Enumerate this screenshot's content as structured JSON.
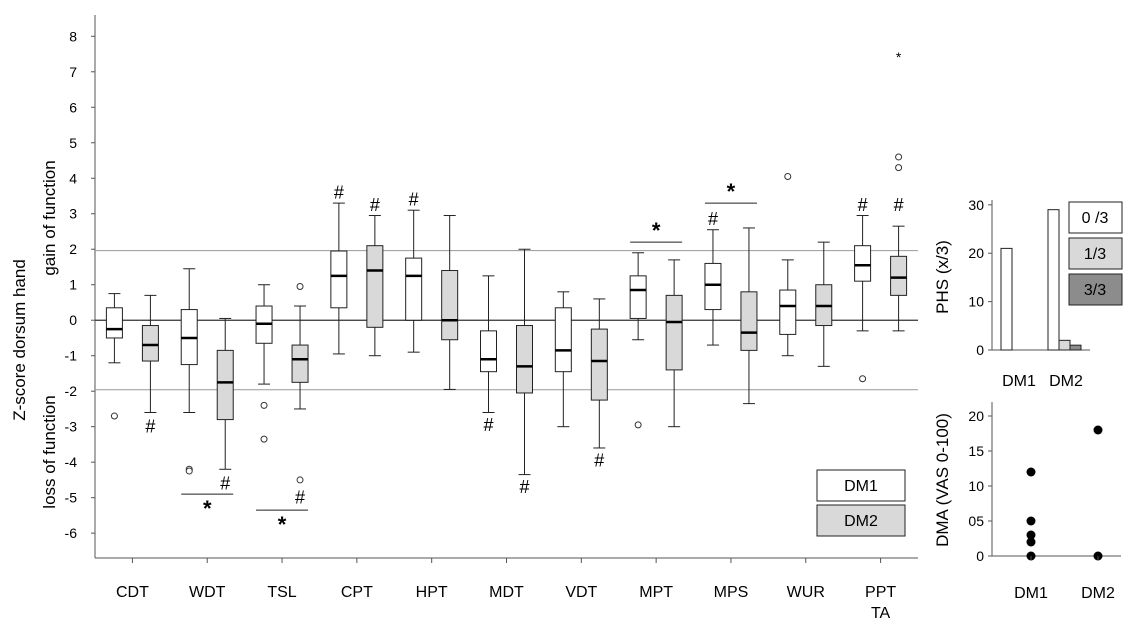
{
  "chart_data": [
    {
      "type": "box",
      "ylabel_top": "Z-score dorsum hand",
      "ylabel_mid": "gain of function",
      "ylabel_bottom": "loss of function",
      "yticks": [
        "8",
        "7",
        "6",
        "5",
        "4",
        "3",
        "2",
        "1",
        "0",
        "-1",
        "-2",
        "-3",
        "-4",
        "-5",
        "-6"
      ],
      "ylim": [
        -6.7,
        8.6
      ],
      "reference_lines": [
        0,
        1.96,
        -1.96
      ],
      "categories": [
        {
          "label": "CDT",
          "label2": ""
        },
        {
          "label": "WDT",
          "label2": ""
        },
        {
          "label": "TSL",
          "label2": ""
        },
        {
          "label": "CPT",
          "label2": ""
        },
        {
          "label": "HPT",
          "label2": ""
        },
        {
          "label": "MDT",
          "label2": ""
        },
        {
          "label": "VDT",
          "label2": ""
        },
        {
          "label": "MPT",
          "label2": ""
        },
        {
          "label": "MPS",
          "label2": ""
        },
        {
          "label": "WUR",
          "label2": ""
        },
        {
          "label": "PPT",
          "label2": "TA"
        }
      ],
      "legend": [
        {
          "name": "DM1",
          "color": "#ffffff"
        },
        {
          "name": "DM2",
          "color": "#d9d9d9"
        }
      ],
      "series": [
        {
          "name": "DM1",
          "color": "#ffffff",
          "boxes": [
            {
              "min": -1.2,
              "q1": -0.5,
              "median": -0.25,
              "q3": 0.35,
              "max": 0.75,
              "outliers": [
                -2.7
              ],
              "extremes": []
            },
            {
              "min": -2.6,
              "q1": -1.25,
              "median": -0.5,
              "q3": 0.3,
              "max": 1.45,
              "outliers": [
                -4.2,
                -4.25
              ],
              "extremes": []
            },
            {
              "min": -1.8,
              "q1": -0.65,
              "median": -0.1,
              "q3": 0.4,
              "max": 1.0,
              "outliers": [
                -2.4,
                -3.35
              ],
              "extremes": []
            },
            {
              "min": -0.95,
              "q1": 0.35,
              "median": 1.25,
              "q3": 1.95,
              "max": 3.3,
              "outliers": [],
              "extremes": []
            },
            {
              "min": -0.9,
              "q1": 0.0,
              "median": 1.25,
              "q3": 1.75,
              "max": 3.1,
              "outliers": [],
              "extremes": []
            },
            {
              "min": -2.6,
              "q1": -1.45,
              "median": -1.1,
              "q3": -0.3,
              "max": 1.25,
              "outliers": [],
              "extremes": []
            },
            {
              "min": -3.0,
              "q1": -1.45,
              "median": -0.85,
              "q3": 0.35,
              "max": 0.8,
              "outliers": [],
              "extremes": []
            },
            {
              "min": -0.55,
              "q1": 0.05,
              "median": 0.85,
              "q3": 1.25,
              "max": 1.9,
              "outliers": [
                -2.95
              ],
              "extremes": []
            },
            {
              "min": -0.7,
              "q1": 0.3,
              "median": 1.0,
              "q3": 1.6,
              "max": 2.55,
              "outliers": [],
              "extremes": []
            },
            {
              "min": -1.0,
              "q1": -0.4,
              "median": 0.4,
              "q3": 0.85,
              "max": 1.7,
              "outliers": [
                4.05
              ],
              "extremes": []
            },
            {
              "min": -0.3,
              "q1": 1.1,
              "median": 1.55,
              "q3": 2.1,
              "max": 2.95,
              "outliers": [
                -1.65
              ],
              "extremes": []
            }
          ]
        },
        {
          "name": "DM2",
          "color": "#d9d9d9",
          "boxes": [
            {
              "min": -2.6,
              "q1": -1.15,
              "median": -0.7,
              "q3": -0.15,
              "max": 0.7,
              "outliers": [],
              "extremes": []
            },
            {
              "min": -4.2,
              "q1": -2.8,
              "median": -1.75,
              "q3": -0.85,
              "max": 0.05,
              "outliers": [],
              "extremes": []
            },
            {
              "min": -2.5,
              "q1": -1.75,
              "median": -1.1,
              "q3": -0.7,
              "max": 0.4,
              "outliers": [
                0.95,
                -4.5
              ],
              "extremes": []
            },
            {
              "min": -1.0,
              "q1": -0.2,
              "median": 1.4,
              "q3": 2.1,
              "max": 2.95,
              "outliers": [],
              "extremes": []
            },
            {
              "min": -1.95,
              "q1": -0.55,
              "median": 0.0,
              "q3": 1.4,
              "max": 2.95,
              "outliers": [],
              "extremes": []
            },
            {
              "min": -4.35,
              "q1": -2.05,
              "median": -1.3,
              "q3": -0.15,
              "max": 2.0,
              "outliers": [],
              "extremes": []
            },
            {
              "min": -3.6,
              "q1": -2.25,
              "median": -1.15,
              "q3": -0.25,
              "max": 0.6,
              "outliers": [],
              "extremes": []
            },
            {
              "min": -3.0,
              "q1": -1.4,
              "median": -0.05,
              "q3": 0.7,
              "max": 1.7,
              "outliers": [],
              "extremes": []
            },
            {
              "min": -2.35,
              "q1": -0.85,
              "median": -0.35,
              "q3": 0.8,
              "max": 2.6,
              "outliers": [],
              "extremes": []
            },
            {
              "min": -1.3,
              "q1": -0.15,
              "median": 0.4,
              "q3": 1.0,
              "max": 2.2,
              "outliers": [],
              "extremes": []
            },
            {
              "min": -0.3,
              "q1": 0.7,
              "median": 1.2,
              "q3": 1.8,
              "max": 2.65,
              "outliers": [
                4.6,
                4.3
              ],
              "extremes": [
                7.45
              ]
            }
          ]
        }
      ],
      "annotations": [
        {
          "cat": 0,
          "group": 1,
          "y": -3.0,
          "text": "#"
        },
        {
          "cat": 1,
          "group": 1,
          "y": -4.6,
          "text": "#"
        },
        {
          "cat": 2,
          "group": 1,
          "y": -5.0,
          "text": "#"
        },
        {
          "cat": 3,
          "group": 0,
          "y": 3.6,
          "text": "#"
        },
        {
          "cat": 3,
          "group": 1,
          "y": 3.25,
          "text": "#"
        },
        {
          "cat": 4,
          "group": 0,
          "y": 3.4,
          "text": "#"
        },
        {
          "cat": 5,
          "group": 0,
          "y": -2.95,
          "text": "#"
        },
        {
          "cat": 5,
          "group": 1,
          "y": -4.7,
          "text": "#"
        },
        {
          "cat": 6,
          "group": 1,
          "y": -3.95,
          "text": "#"
        },
        {
          "cat": 8,
          "group": 0,
          "y": 2.85,
          "text": "#"
        },
        {
          "cat": 10,
          "group": 0,
          "y": 3.25,
          "text": "#"
        },
        {
          "cat": 10,
          "group": 1,
          "y": 3.25,
          "text": "#"
        }
      ],
      "significance": [
        {
          "cat": 1,
          "y": -4.9,
          "text": "*",
          "below": true
        },
        {
          "cat": 2,
          "y": -5.35,
          "text": "*",
          "below": true
        },
        {
          "cat": 7,
          "y": 2.2,
          "text": "*",
          "below": false
        },
        {
          "cat": 8,
          "y": 3.3,
          "text": "*",
          "below": false
        }
      ]
    },
    {
      "type": "bar",
      "ylabel": "PHS (x/3)",
      "yticks": [
        "0",
        "10",
        "20",
        "30"
      ],
      "ylim": [
        0,
        31
      ],
      "categories": [
        "DM1",
        "DM2"
      ],
      "series": [
        {
          "name": "0 /3",
          "color": "#ffffff",
          "values": [
            21,
            29
          ]
        },
        {
          "name": "1/3",
          "color": "#d9d9d9",
          "values": [
            0,
            2
          ]
        },
        {
          "name": "3/3",
          "color": "#8c8c8c",
          "values": [
            0,
            1
          ]
        }
      ]
    },
    {
      "type": "scatter",
      "ylabel": "DMA (VAS 0-100)",
      "yticks": [
        "0",
        "05",
        "10",
        "15",
        "20"
      ],
      "ylim": [
        0,
        22
      ],
      "categories": [
        "DM1",
        "DM2"
      ],
      "points": [
        {
          "cat": 0,
          "values": [
            12,
            5,
            3,
            2,
            0
          ]
        },
        {
          "cat": 1,
          "values": [
            18,
            0
          ]
        }
      ]
    }
  ]
}
